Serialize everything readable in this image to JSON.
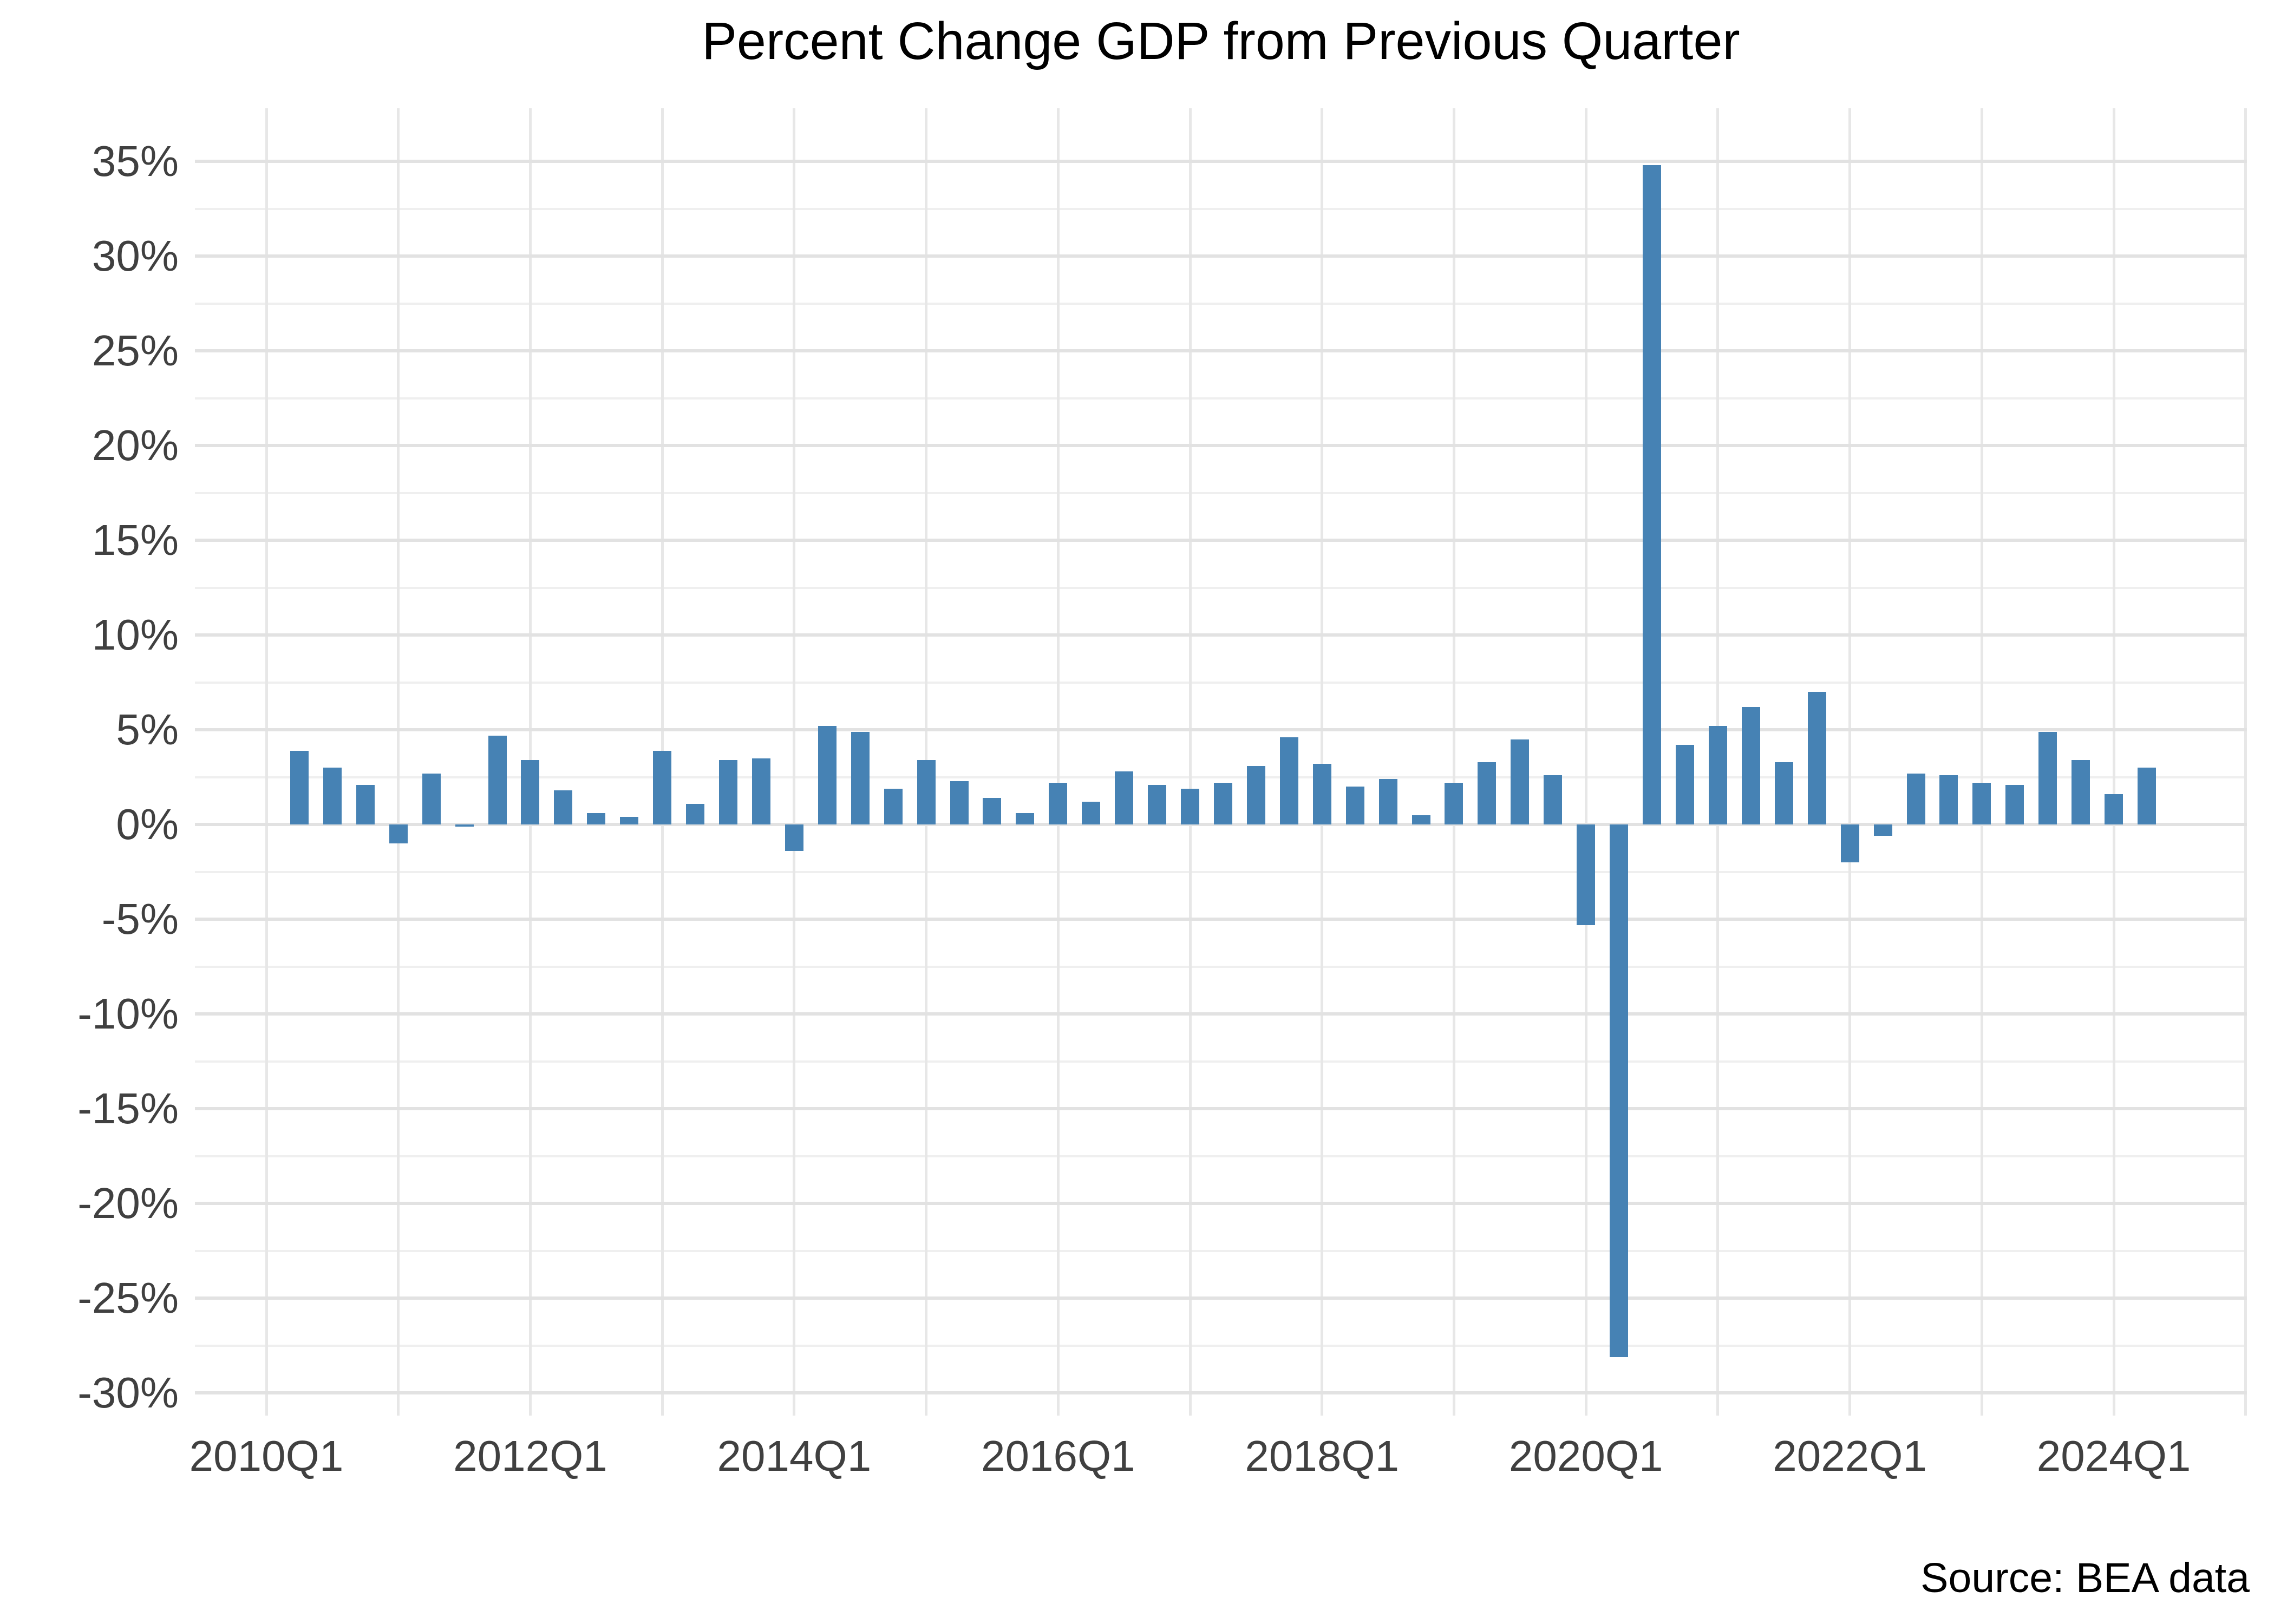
{
  "title": "Percent Change GDP from Previous Quarter",
  "source_note": "Source: BEA data",
  "chart_data": {
    "type": "bar",
    "title": "Percent Change GDP from Previous Quarter",
    "xlabel": "",
    "ylabel": "",
    "x": [
      "2010Q2",
      "2010Q3",
      "2010Q4",
      "2011Q1",
      "2011Q2",
      "2011Q3",
      "2011Q4",
      "2012Q1",
      "2012Q2",
      "2012Q3",
      "2012Q4",
      "2013Q1",
      "2013Q2",
      "2013Q3",
      "2013Q4",
      "2014Q1",
      "2014Q2",
      "2014Q3",
      "2014Q4",
      "2015Q1",
      "2015Q2",
      "2015Q3",
      "2015Q4",
      "2016Q1",
      "2016Q2",
      "2016Q3",
      "2016Q4",
      "2017Q1",
      "2017Q2",
      "2017Q3",
      "2017Q4",
      "2018Q1",
      "2018Q2",
      "2018Q3",
      "2018Q4",
      "2019Q1",
      "2019Q2",
      "2019Q3",
      "2019Q4",
      "2020Q1",
      "2020Q2",
      "2020Q3",
      "2020Q4",
      "2021Q1",
      "2021Q2",
      "2021Q3",
      "2021Q4",
      "2022Q1",
      "2022Q2",
      "2022Q3",
      "2022Q4",
      "2023Q1",
      "2023Q2",
      "2023Q3",
      "2023Q4",
      "2024Q1",
      "2024Q2"
    ],
    "values": [
      3.9,
      3.0,
      2.1,
      -1.0,
      2.7,
      -0.1,
      4.7,
      3.4,
      1.8,
      0.6,
      0.4,
      3.9,
      1.1,
      3.4,
      3.5,
      -1.4,
      5.2,
      4.9,
      1.9,
      3.4,
      2.3,
      1.4,
      0.6,
      2.2,
      1.2,
      2.8,
      2.1,
      1.9,
      2.2,
      3.1,
      4.6,
      3.2,
      2.0,
      2.4,
      0.5,
      2.2,
      3.3,
      4.5,
      2.6,
      -5.3,
      -28.1,
      34.8,
      4.2,
      5.2,
      6.2,
      3.3,
      7.0,
      -2.0,
      -0.6,
      2.7,
      2.6,
      2.2,
      2.1,
      4.9,
      3.4,
      1.6,
      3.0
    ],
    "y_axis": {
      "major_ticks": [
        35,
        30,
        25,
        20,
        15,
        10,
        5,
        0,
        -5,
        -10,
        -15,
        -20,
        -25,
        -30
      ],
      "tick_labels": [
        "35%",
        "30%",
        "25%",
        "20%",
        "15%",
        "10%",
        "5%",
        "0%",
        "-5%",
        "-10%",
        "-15%",
        "-20%",
        "-25%",
        "-30%"
      ],
      "minor_ticks": [
        32.5,
        27.5,
        22.5,
        17.5,
        12.5,
        7.5,
        2.5,
        -2.5,
        -7.5,
        -12.5,
        -17.5,
        -22.5,
        -27.5
      ],
      "ylim": [
        -31.2,
        37.8
      ]
    },
    "x_axis": {
      "ticks": [
        "2010Q1",
        "2012Q1",
        "2014Q1",
        "2016Q1",
        "2018Q1",
        "2020Q1",
        "2022Q1",
        "2024Q1"
      ],
      "year_gridlines": [
        2010,
        2011,
        2012,
        2013,
        2014,
        2015,
        2016,
        2017,
        2018,
        2019,
        2020,
        2021,
        2022,
        2023,
        2024,
        2025
      ]
    },
    "grid": true,
    "legend": false,
    "colors": {
      "bar": "#4682B4",
      "grid_major": "#e2e2e2",
      "grid_minor": "#efefef",
      "axis_text": "#404040",
      "title_text": "#000000",
      "background": "#ffffff"
    }
  }
}
